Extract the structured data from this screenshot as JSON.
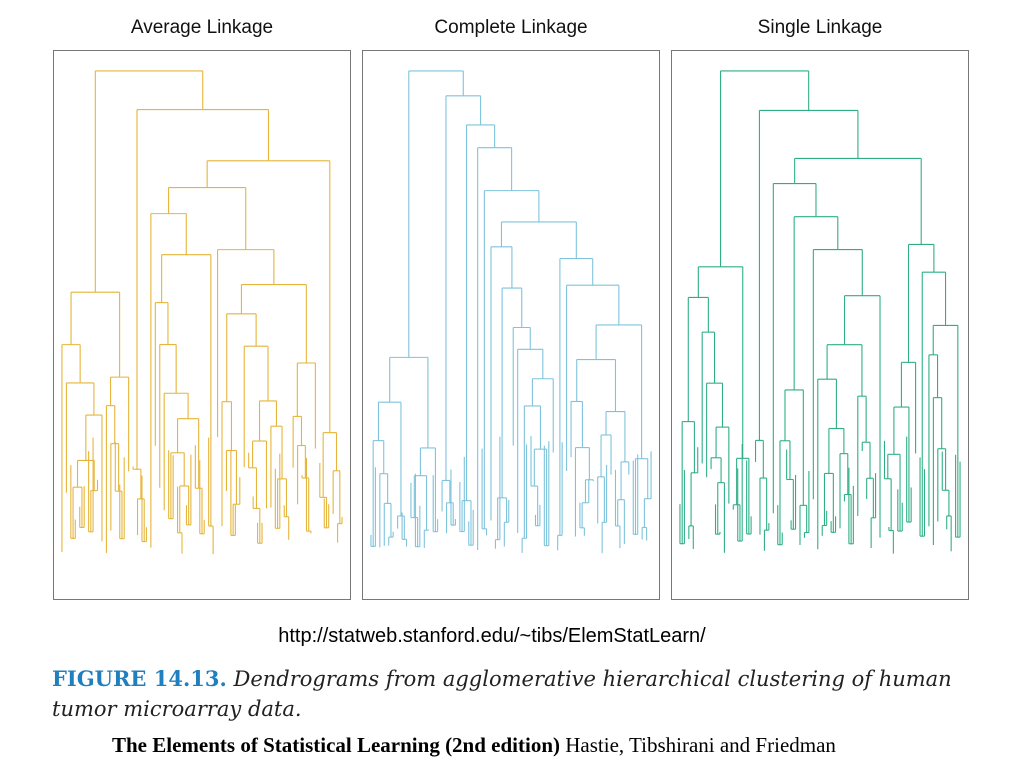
{
  "figure": {
    "panels": [
      {
        "title": "Average Linkage",
        "color": "#e6b43a",
        "seed": 7
      },
      {
        "title": "Complete Linkage",
        "color": "#7ec3dc",
        "seed": 23
      },
      {
        "title": "Single Linkage",
        "color": "#2fae86",
        "seed": 51
      }
    ],
    "url": "http://statweb.stanford.edu/~tibs/ElemStatLearn/",
    "caption_label": "FIGURE 14.13.",
    "caption_text": "Dendrograms from agglomerative hierarchical clustering of human tumor microarray data.",
    "footer_book": "The Elements of Statistical Learning (2nd edition)",
    "footer_authors": "Hastie, Tibshirani and Friedman"
  }
}
